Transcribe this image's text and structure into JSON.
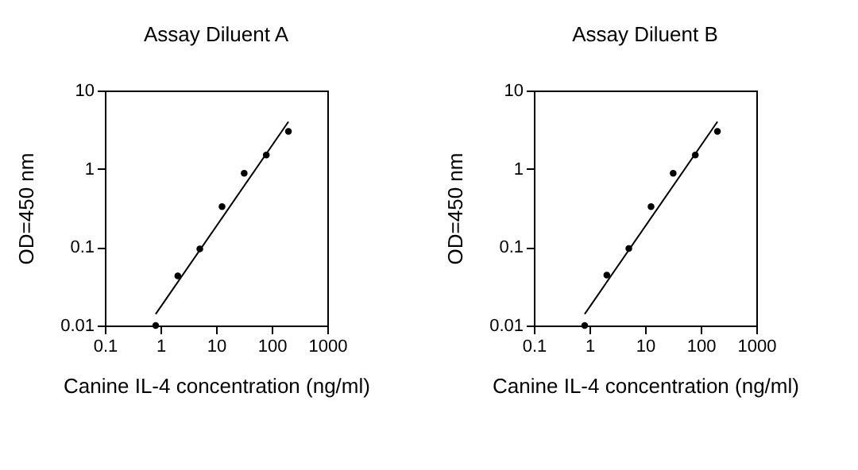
{
  "chart_data": [
    {
      "type": "scatter",
      "title": "Assay Diluent A",
      "xlabel": "Canine IL-4 concentration (ng/ml)",
      "ylabel": "OD=450 nm",
      "log": "xy",
      "xlim": [
        0.1,
        1000
      ],
      "ylim": [
        0.01,
        10
      ],
      "xticks": [
        0.1,
        1,
        10,
        100,
        1000
      ],
      "yticks": [
        0.01,
        0.1,
        1,
        10
      ],
      "grid": false,
      "series": [
        {
          "color": "#000000",
          "marker": "circle",
          "x": [
            0.82,
            2.05,
            5.1,
            12.8,
            32,
            80,
            200
          ],
          "values": [
            0.01,
            0.043,
            0.095,
            0.33,
            0.88,
            1.5,
            3.0
          ]
        },
        {
          "type": "line",
          "marker": "none",
          "color": "#000000",
          "x": [
            0.82,
            200
          ],
          "values": [
            0.014,
            4.0
          ]
        }
      ]
    },
    {
      "type": "scatter",
      "title": "Assay Diluent B",
      "xlabel": "Canine IL-4 concentration (ng/ml)",
      "ylabel": "OD=450 nm",
      "log": "xy",
      "xlim": [
        0.1,
        1000
      ],
      "ylim": [
        0.01,
        10
      ],
      "xticks": [
        0.1,
        1,
        10,
        100,
        1000
      ],
      "yticks": [
        0.01,
        0.1,
        1,
        10
      ],
      "grid": false,
      "series": [
        {
          "color": "#000000",
          "marker": "circle",
          "x": [
            0.82,
            2.05,
            5.1,
            12.8,
            32,
            80,
            200
          ],
          "values": [
            0.01,
            0.044,
            0.096,
            0.33,
            0.88,
            1.5,
            3.0
          ]
        },
        {
          "type": "line",
          "marker": "none",
          "color": "#000000",
          "x": [
            0.82,
            200
          ],
          "values": [
            0.014,
            4.0
          ]
        }
      ]
    }
  ]
}
